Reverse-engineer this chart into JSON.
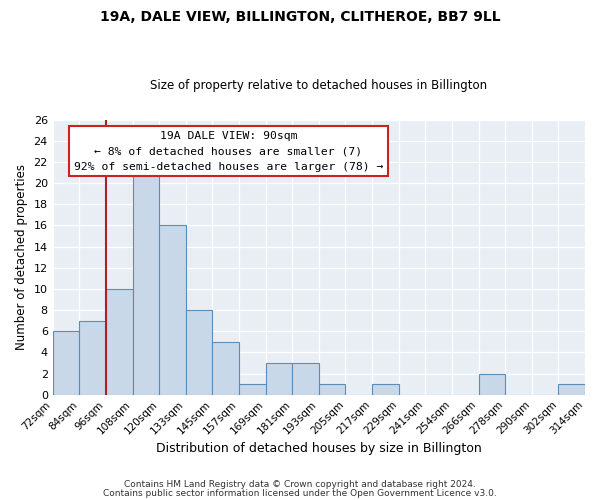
{
  "title": "19A, DALE VIEW, BILLINGTON, CLITHEROE, BB7 9LL",
  "subtitle": "Size of property relative to detached houses in Billington",
  "xlabel": "Distribution of detached houses by size in Billington",
  "ylabel": "Number of detached properties",
  "bin_labels": [
    "72sqm",
    "84sqm",
    "96sqm",
    "108sqm",
    "120sqm",
    "133sqm",
    "145sqm",
    "157sqm",
    "169sqm",
    "181sqm",
    "193sqm",
    "205sqm",
    "217sqm",
    "229sqm",
    "241sqm",
    "254sqm",
    "266sqm",
    "278sqm",
    "290sqm",
    "302sqm",
    "314sqm"
  ],
  "bar_heights": [
    6,
    7,
    10,
    21,
    16,
    8,
    5,
    1,
    3,
    3,
    1,
    0,
    1,
    0,
    0,
    0,
    2,
    0,
    0,
    1,
    0
  ],
  "bar_color": "#c8d8e8",
  "bar_edge_color": "#5b8db8",
  "highlight_line_color": "#aa2222",
  "ylim": [
    0,
    26
  ],
  "yticks": [
    0,
    2,
    4,
    6,
    8,
    10,
    12,
    14,
    16,
    18,
    20,
    22,
    24,
    26
  ],
  "annotation_title": "19A DALE VIEW: 90sqm",
  "annotation_line1": "← 8% of detached houses are smaller (7)",
  "annotation_line2": "92% of semi-detached houses are larger (78) →",
  "annotation_box_color": "#ffffff",
  "annotation_box_edge": "#cc2222",
  "footer1": "Contains HM Land Registry data © Crown copyright and database right 2024.",
  "footer2": "Contains public sector information licensed under the Open Government Licence v3.0.",
  "bg_color": "#e8eef4",
  "grid_color": "#ffffff"
}
